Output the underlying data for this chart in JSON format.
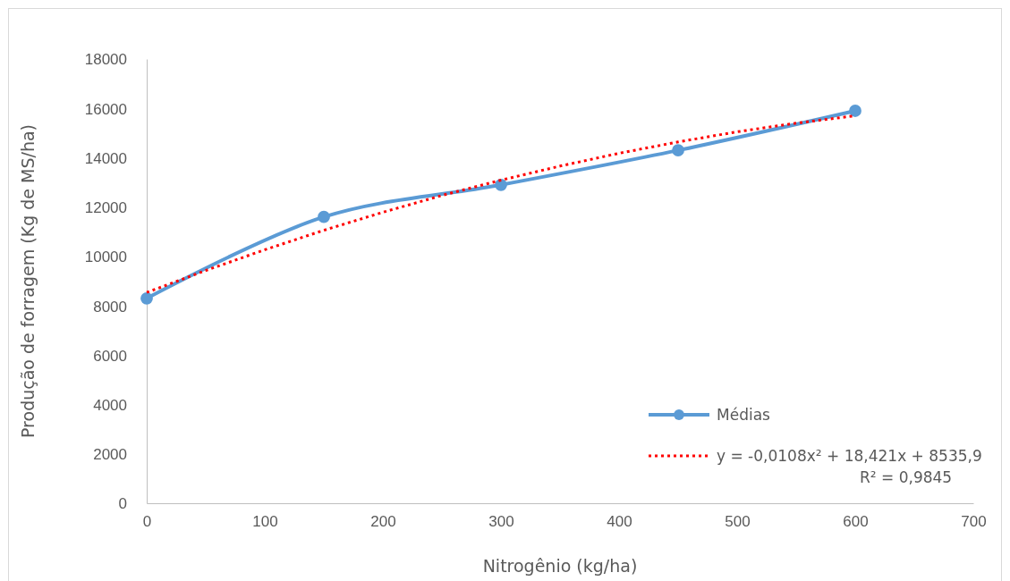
{
  "chart_data": {
    "type": "line",
    "xlabel": "Nitrogênio (kg/ha)",
    "ylabel": "Produção de forragem (Kg de MS/ha)",
    "xlim": [
      0,
      700
    ],
    "xticks": [
      0,
      100,
      200,
      300,
      400,
      500,
      600,
      700
    ],
    "ylim": [
      0,
      18000
    ],
    "yticks": [
      0,
      2000,
      4000,
      6000,
      8000,
      10000,
      12000,
      14000,
      16000,
      18000
    ],
    "grid": false,
    "legend": "bottom right",
    "series": [
      {
        "name": "Médias",
        "color": "#5b9bd5",
        "x": [
          0,
          150,
          300,
          450,
          600
        ],
        "values": [
          8300,
          11600,
          12900,
          14300,
          15900
        ],
        "marker": "circle",
        "line_style": "solid"
      },
      {
        "name": "y = -0,0108x² + 18,421x + 8535,9\nR² = 0,9845",
        "color": "#ff0000",
        "x": [
          0,
          50,
          100,
          150,
          200,
          250,
          300,
          350,
          400,
          450,
          500,
          550,
          600
        ],
        "values": [
          8540,
          9430,
          10270,
          11060,
          11790,
          12470,
          13090,
          13660,
          14180,
          14640,
          15050,
          15400,
          15700
        ],
        "marker": "none",
        "line_style": "dotted"
      }
    ]
  }
}
